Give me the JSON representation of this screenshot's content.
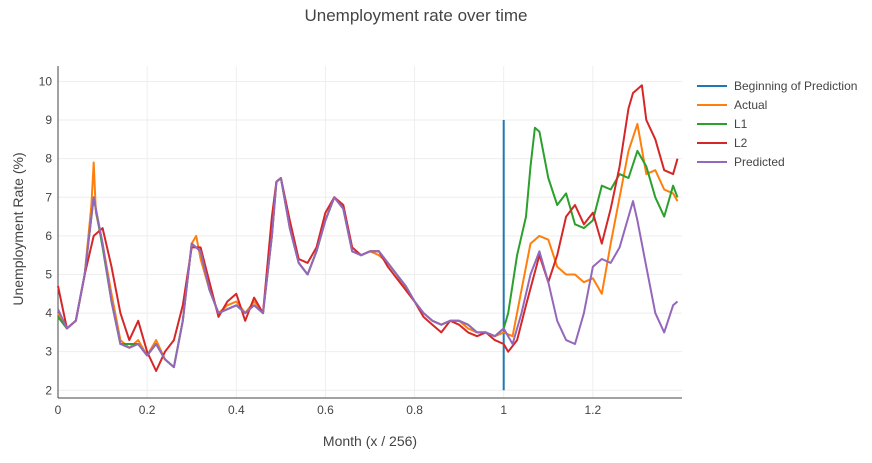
{
  "chart_data": {
    "type": "line",
    "title": "Unemployment rate over time",
    "xlabel": "Month (x / 256)",
    "ylabel": "Unemployment Rate (%)",
    "xlim": [
      0,
      1.4
    ],
    "ylim": [
      1.8,
      10.4
    ],
    "x_ticks": [
      0,
      0.2,
      0.4,
      0.6,
      0.8,
      1,
      1.2
    ],
    "x_tick_labels": [
      "0",
      "0.2",
      "0.4",
      "0.6",
      "0.8",
      "1",
      "1.2"
    ],
    "y_ticks": [
      2,
      3,
      4,
      5,
      6,
      7,
      8,
      9,
      10
    ],
    "grid": true,
    "legend_position": "right",
    "series": [
      {
        "name": "Beginning of Prediction",
        "color": "#1f77b4",
        "points": [
          [
            1.0,
            2.0
          ],
          [
            1.0,
            9.0
          ]
        ]
      },
      {
        "name": "Actual",
        "color": "#ff7f0e",
        "points": [
          [
            0.0,
            4.0
          ],
          [
            0.02,
            3.6
          ],
          [
            0.04,
            3.8
          ],
          [
            0.06,
            5.0
          ],
          [
            0.075,
            6.8
          ],
          [
            0.08,
            7.9
          ],
          [
            0.085,
            6.6
          ],
          [
            0.1,
            5.8
          ],
          [
            0.12,
            4.5
          ],
          [
            0.14,
            3.3
          ],
          [
            0.16,
            3.1
          ],
          [
            0.18,
            3.3
          ],
          [
            0.2,
            2.9
          ],
          [
            0.22,
            3.3
          ],
          [
            0.24,
            2.8
          ],
          [
            0.26,
            2.6
          ],
          [
            0.28,
            3.8
          ],
          [
            0.3,
            5.8
          ],
          [
            0.31,
            6.0
          ],
          [
            0.32,
            5.4
          ],
          [
            0.34,
            4.6
          ],
          [
            0.36,
            4.0
          ],
          [
            0.38,
            4.2
          ],
          [
            0.4,
            4.3
          ],
          [
            0.42,
            4.0
          ],
          [
            0.44,
            4.3
          ],
          [
            0.46,
            4.0
          ],
          [
            0.48,
            6.0
          ],
          [
            0.49,
            7.4
          ],
          [
            0.5,
            7.5
          ],
          [
            0.52,
            6.2
          ],
          [
            0.54,
            5.3
          ],
          [
            0.56,
            5.0
          ],
          [
            0.58,
            5.6
          ],
          [
            0.6,
            6.4
          ],
          [
            0.62,
            7.0
          ],
          [
            0.64,
            6.7
          ],
          [
            0.66,
            5.6
          ],
          [
            0.68,
            5.5
          ],
          [
            0.7,
            5.6
          ],
          [
            0.72,
            5.5
          ],
          [
            0.74,
            5.3
          ],
          [
            0.76,
            5.0
          ],
          [
            0.78,
            4.6
          ],
          [
            0.8,
            4.3
          ],
          [
            0.82,
            4.0
          ],
          [
            0.84,
            3.8
          ],
          [
            0.86,
            3.7
          ],
          [
            0.88,
            3.8
          ],
          [
            0.9,
            3.8
          ],
          [
            0.92,
            3.6
          ],
          [
            0.94,
            3.5
          ],
          [
            0.96,
            3.5
          ],
          [
            0.98,
            3.4
          ],
          [
            1.0,
            3.5
          ],
          [
            1.02,
            3.4
          ],
          [
            1.04,
            4.6
          ],
          [
            1.06,
            5.8
          ],
          [
            1.08,
            6.0
          ],
          [
            1.1,
            5.9
          ],
          [
            1.12,
            5.2
          ],
          [
            1.14,
            5.0
          ],
          [
            1.16,
            5.0
          ],
          [
            1.18,
            4.8
          ],
          [
            1.2,
            4.9
          ],
          [
            1.22,
            4.5
          ],
          [
            1.24,
            5.8
          ],
          [
            1.26,
            7.0
          ],
          [
            1.28,
            8.2
          ],
          [
            1.3,
            8.9
          ],
          [
            1.32,
            7.6
          ],
          [
            1.34,
            7.7
          ],
          [
            1.36,
            7.2
          ],
          [
            1.38,
            7.1
          ],
          [
            1.39,
            6.9
          ]
        ]
      },
      {
        "name": "L1",
        "color": "#2ca02c",
        "points": [
          [
            0.0,
            3.9
          ],
          [
            0.02,
            3.6
          ],
          [
            0.04,
            3.8
          ],
          [
            0.06,
            5.0
          ],
          [
            0.08,
            7.0
          ],
          [
            0.1,
            5.7
          ],
          [
            0.12,
            4.3
          ],
          [
            0.14,
            3.2
          ],
          [
            0.16,
            3.2
          ],
          [
            0.18,
            3.2
          ],
          [
            0.2,
            2.9
          ],
          [
            0.22,
            3.2
          ],
          [
            0.24,
            2.8
          ],
          [
            0.26,
            2.6
          ],
          [
            0.28,
            3.8
          ],
          [
            0.3,
            5.8
          ],
          [
            0.32,
            5.6
          ],
          [
            0.34,
            4.6
          ],
          [
            0.36,
            4.0
          ],
          [
            0.38,
            4.1
          ],
          [
            0.4,
            4.2
          ],
          [
            0.42,
            4.0
          ],
          [
            0.44,
            4.2
          ],
          [
            0.46,
            4.0
          ],
          [
            0.48,
            6.0
          ],
          [
            0.49,
            7.4
          ],
          [
            0.5,
            7.5
          ],
          [
            0.52,
            6.2
          ],
          [
            0.54,
            5.3
          ],
          [
            0.56,
            5.0
          ],
          [
            0.58,
            5.6
          ],
          [
            0.6,
            6.4
          ],
          [
            0.62,
            7.0
          ],
          [
            0.64,
            6.7
          ],
          [
            0.66,
            5.6
          ],
          [
            0.68,
            5.5
          ],
          [
            0.7,
            5.6
          ],
          [
            0.72,
            5.6
          ],
          [
            0.74,
            5.3
          ],
          [
            0.76,
            5.0
          ],
          [
            0.78,
            4.7
          ],
          [
            0.8,
            4.3
          ],
          [
            0.82,
            4.0
          ],
          [
            0.84,
            3.8
          ],
          [
            0.86,
            3.7
          ],
          [
            0.88,
            3.8
          ],
          [
            0.9,
            3.8
          ],
          [
            0.92,
            3.7
          ],
          [
            0.94,
            3.5
          ],
          [
            0.96,
            3.5
          ],
          [
            0.98,
            3.4
          ],
          [
            1.0,
            3.6
          ],
          [
            1.01,
            4.0
          ],
          [
            1.03,
            5.5
          ],
          [
            1.05,
            6.5
          ],
          [
            1.06,
            7.8
          ],
          [
            1.07,
            8.8
          ],
          [
            1.08,
            8.7
          ],
          [
            1.1,
            7.5
          ],
          [
            1.12,
            6.8
          ],
          [
            1.14,
            7.1
          ],
          [
            1.16,
            6.3
          ],
          [
            1.18,
            6.2
          ],
          [
            1.2,
            6.4
          ],
          [
            1.22,
            7.3
          ],
          [
            1.24,
            7.2
          ],
          [
            1.26,
            7.6
          ],
          [
            1.28,
            7.5
          ],
          [
            1.3,
            8.2
          ],
          [
            1.32,
            7.8
          ],
          [
            1.34,
            7.0
          ],
          [
            1.36,
            6.5
          ],
          [
            1.38,
            7.3
          ],
          [
            1.39,
            7.0
          ]
        ]
      },
      {
        "name": "L2",
        "color": "#d62728",
        "points": [
          [
            0.0,
            4.7
          ],
          [
            0.02,
            3.6
          ],
          [
            0.04,
            3.8
          ],
          [
            0.06,
            5.0
          ],
          [
            0.08,
            6.0
          ],
          [
            0.1,
            6.2
          ],
          [
            0.12,
            5.2
          ],
          [
            0.14,
            4.0
          ],
          [
            0.16,
            3.3
          ],
          [
            0.18,
            3.8
          ],
          [
            0.2,
            3.0
          ],
          [
            0.22,
            2.5
          ],
          [
            0.24,
            3.0
          ],
          [
            0.26,
            3.3
          ],
          [
            0.28,
            4.2
          ],
          [
            0.3,
            5.7
          ],
          [
            0.32,
            5.7
          ],
          [
            0.34,
            4.8
          ],
          [
            0.36,
            3.9
          ],
          [
            0.38,
            4.3
          ],
          [
            0.4,
            4.5
          ],
          [
            0.42,
            3.8
          ],
          [
            0.44,
            4.4
          ],
          [
            0.46,
            4.0
          ],
          [
            0.48,
            6.5
          ],
          [
            0.49,
            7.4
          ],
          [
            0.5,
            7.5
          ],
          [
            0.52,
            6.4
          ],
          [
            0.54,
            5.4
          ],
          [
            0.56,
            5.3
          ],
          [
            0.58,
            5.7
          ],
          [
            0.6,
            6.6
          ],
          [
            0.62,
            7.0
          ],
          [
            0.64,
            6.8
          ],
          [
            0.66,
            5.7
          ],
          [
            0.68,
            5.5
          ],
          [
            0.7,
            5.6
          ],
          [
            0.72,
            5.6
          ],
          [
            0.74,
            5.2
          ],
          [
            0.76,
            4.9
          ],
          [
            0.78,
            4.6
          ],
          [
            0.8,
            4.3
          ],
          [
            0.82,
            3.9
          ],
          [
            0.84,
            3.7
          ],
          [
            0.86,
            3.5
          ],
          [
            0.88,
            3.8
          ],
          [
            0.9,
            3.7
          ],
          [
            0.92,
            3.5
          ],
          [
            0.94,
            3.4
          ],
          [
            0.96,
            3.5
          ],
          [
            0.98,
            3.3
          ],
          [
            1.0,
            3.2
          ],
          [
            1.01,
            3.0
          ],
          [
            1.03,
            3.3
          ],
          [
            1.05,
            4.2
          ],
          [
            1.08,
            5.5
          ],
          [
            1.1,
            4.8
          ],
          [
            1.12,
            5.5
          ],
          [
            1.14,
            6.5
          ],
          [
            1.16,
            6.8
          ],
          [
            1.18,
            6.3
          ],
          [
            1.2,
            6.6
          ],
          [
            1.22,
            5.8
          ],
          [
            1.24,
            6.7
          ],
          [
            1.26,
            7.8
          ],
          [
            1.28,
            9.3
          ],
          [
            1.29,
            9.7
          ],
          [
            1.31,
            9.9
          ],
          [
            1.32,
            9.0
          ],
          [
            1.34,
            8.5
          ],
          [
            1.36,
            7.7
          ],
          [
            1.38,
            7.6
          ],
          [
            1.39,
            8.0
          ]
        ]
      },
      {
        "name": "Predicted",
        "color": "#9467bd",
        "points": [
          [
            0.0,
            4.1
          ],
          [
            0.02,
            3.6
          ],
          [
            0.04,
            3.8
          ],
          [
            0.06,
            5.0
          ],
          [
            0.08,
            7.0
          ],
          [
            0.1,
            5.8
          ],
          [
            0.12,
            4.3
          ],
          [
            0.14,
            3.2
          ],
          [
            0.16,
            3.1
          ],
          [
            0.18,
            3.2
          ],
          [
            0.2,
            2.9
          ],
          [
            0.22,
            3.2
          ],
          [
            0.24,
            2.8
          ],
          [
            0.26,
            2.6
          ],
          [
            0.28,
            3.8
          ],
          [
            0.3,
            5.8
          ],
          [
            0.32,
            5.6
          ],
          [
            0.34,
            4.6
          ],
          [
            0.36,
            4.0
          ],
          [
            0.38,
            4.1
          ],
          [
            0.4,
            4.2
          ],
          [
            0.42,
            4.0
          ],
          [
            0.44,
            4.2
          ],
          [
            0.46,
            4.0
          ],
          [
            0.48,
            6.0
          ],
          [
            0.49,
            7.4
          ],
          [
            0.5,
            7.5
          ],
          [
            0.52,
            6.2
          ],
          [
            0.54,
            5.3
          ],
          [
            0.56,
            5.0
          ],
          [
            0.58,
            5.6
          ],
          [
            0.6,
            6.4
          ],
          [
            0.62,
            7.0
          ],
          [
            0.64,
            6.7
          ],
          [
            0.66,
            5.6
          ],
          [
            0.68,
            5.5
          ],
          [
            0.7,
            5.6
          ],
          [
            0.72,
            5.6
          ],
          [
            0.74,
            5.3
          ],
          [
            0.76,
            5.0
          ],
          [
            0.78,
            4.7
          ],
          [
            0.8,
            4.3
          ],
          [
            0.82,
            4.0
          ],
          [
            0.84,
            3.8
          ],
          [
            0.86,
            3.7
          ],
          [
            0.88,
            3.8
          ],
          [
            0.9,
            3.8
          ],
          [
            0.92,
            3.7
          ],
          [
            0.94,
            3.5
          ],
          [
            0.96,
            3.5
          ],
          [
            0.98,
            3.4
          ],
          [
            1.0,
            3.6
          ],
          [
            1.02,
            3.2
          ],
          [
            1.04,
            4.0
          ],
          [
            1.06,
            5.0
          ],
          [
            1.08,
            5.6
          ],
          [
            1.1,
            4.8
          ],
          [
            1.12,
            3.8
          ],
          [
            1.14,
            3.3
          ],
          [
            1.16,
            3.2
          ],
          [
            1.18,
            4.0
          ],
          [
            1.2,
            5.2
          ],
          [
            1.22,
            5.4
          ],
          [
            1.24,
            5.3
          ],
          [
            1.26,
            5.7
          ],
          [
            1.28,
            6.5
          ],
          [
            1.29,
            6.9
          ],
          [
            1.3,
            6.4
          ],
          [
            1.32,
            5.2
          ],
          [
            1.34,
            4.0
          ],
          [
            1.36,
            3.5
          ],
          [
            1.38,
            4.2
          ],
          [
            1.39,
            4.3
          ]
        ]
      }
    ]
  }
}
